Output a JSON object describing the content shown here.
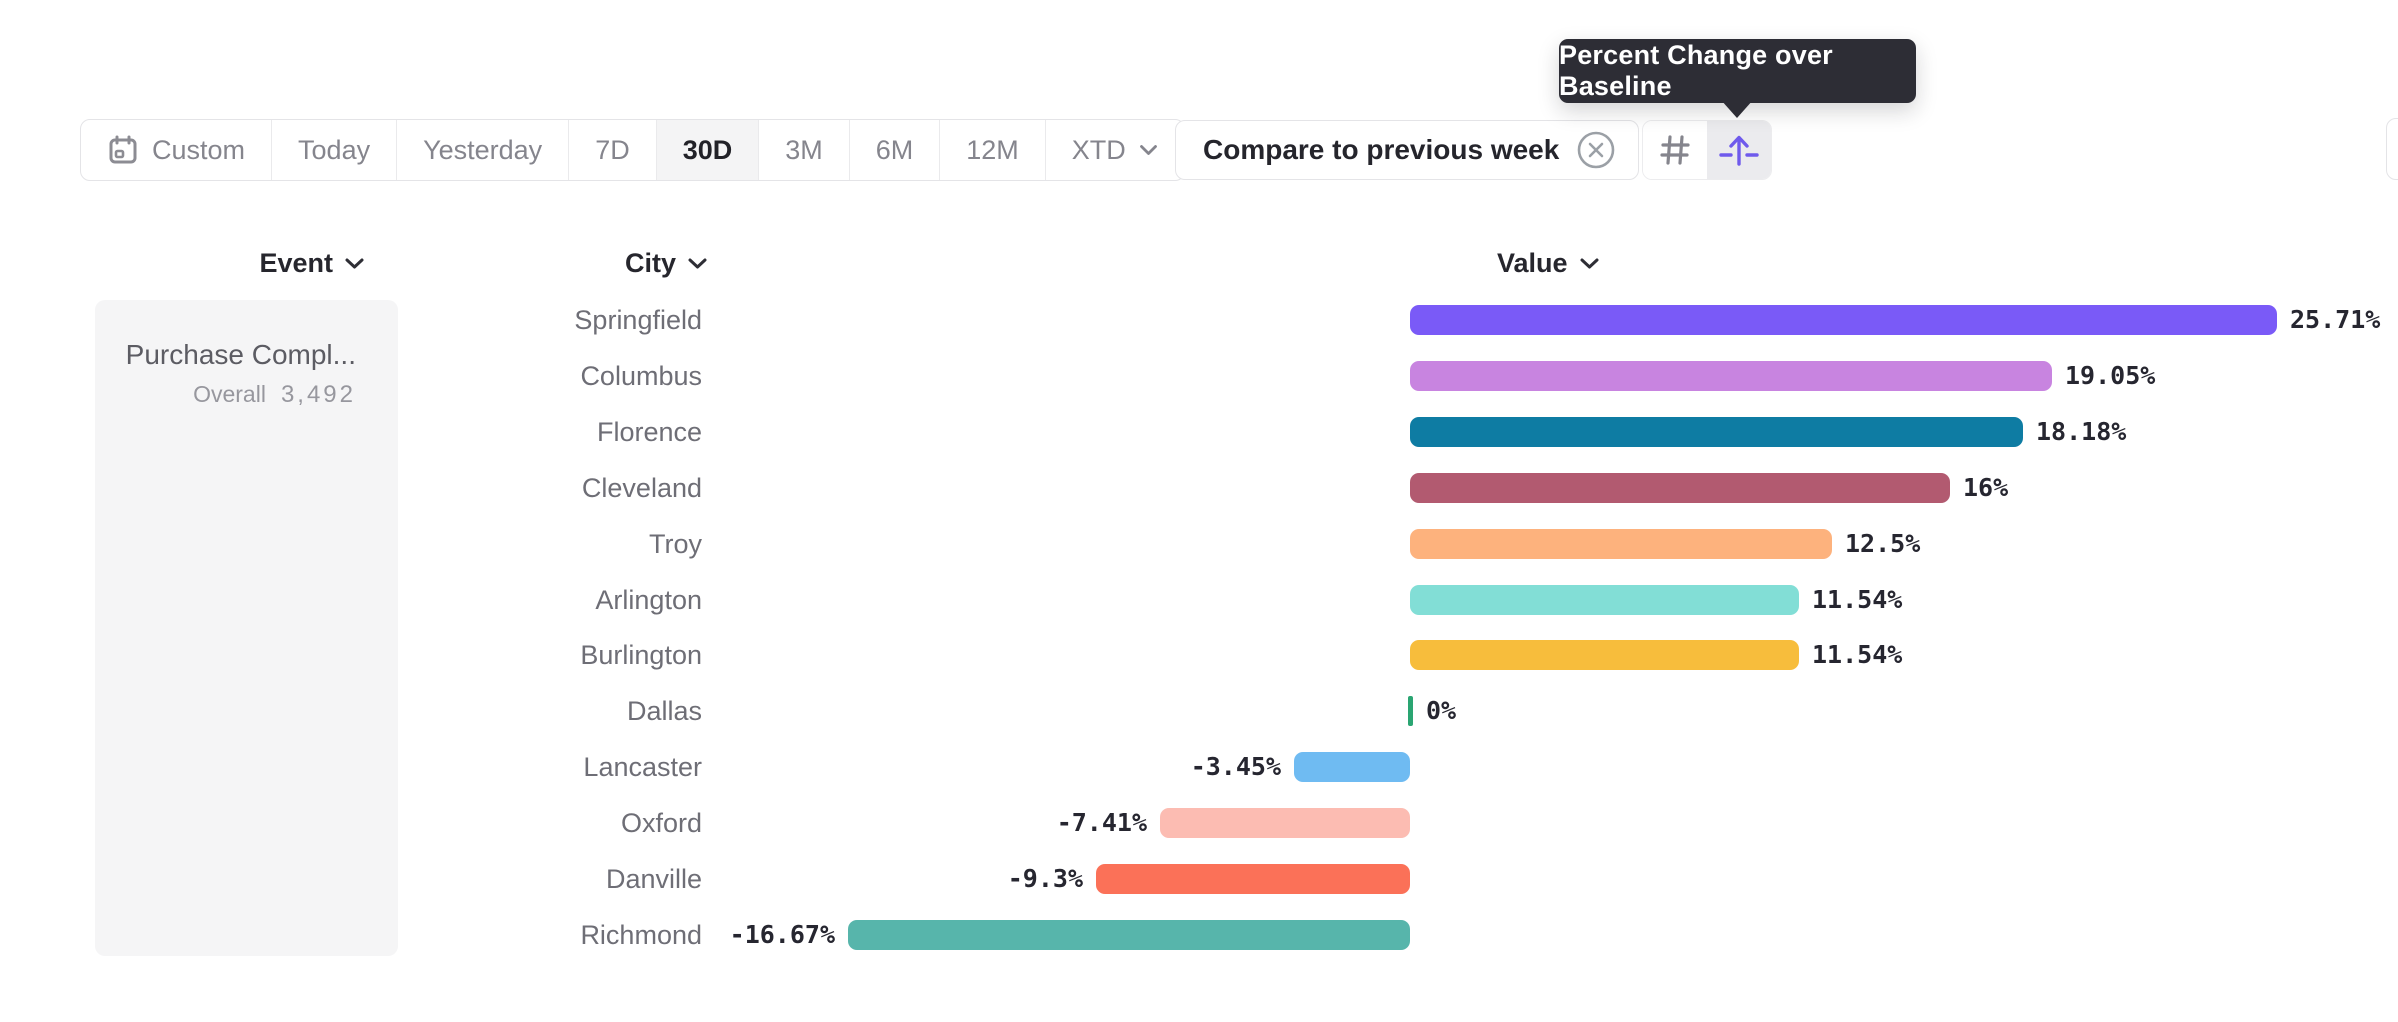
{
  "tooltip": {
    "text": "Percent Change over Baseline",
    "bg_color": "#2d2d35"
  },
  "date_range_bar": {
    "options": [
      {
        "label": "Custom",
        "icon": "calendar-icon",
        "selected": false,
        "has_dropdown": false
      },
      {
        "label": "Today",
        "icon": "",
        "selected": false,
        "has_dropdown": false
      },
      {
        "label": "Yesterday",
        "icon": "",
        "selected": false,
        "has_dropdown": false
      },
      {
        "label": "7D",
        "icon": "",
        "selected": false,
        "has_dropdown": false
      },
      {
        "label": "30D",
        "icon": "",
        "selected": true,
        "has_dropdown": false
      },
      {
        "label": "3M",
        "icon": "",
        "selected": false,
        "has_dropdown": false
      },
      {
        "label": "6M",
        "icon": "",
        "selected": false,
        "has_dropdown": false
      },
      {
        "label": "12M",
        "icon": "",
        "selected": false,
        "has_dropdown": false
      },
      {
        "label": "XTD",
        "icon": "",
        "selected": false,
        "has_dropdown": true
      }
    ]
  },
  "compare_chip": {
    "label": "Compare to previous week"
  },
  "view_toggle": {
    "buttons": [
      {
        "name": "grid-view",
        "icon": "hash-icon",
        "selected": false
      },
      {
        "name": "baseline-lift-view",
        "icon": "arrow-up-baseline-icon",
        "selected": true
      }
    ],
    "accent_color": "#6f5aec"
  },
  "columns": {
    "event": "Event",
    "city": "City",
    "value": "Value"
  },
  "event_card": {
    "title": "Purchase Compl...",
    "overall_label": "Overall",
    "overall_value": "3,492"
  },
  "rows": [
    {
      "city": "Springfield",
      "value": 25.71,
      "label": "25.71%",
      "color": "#7a5af7"
    },
    {
      "city": "Columbus",
      "value": 19.05,
      "label": "19.05%",
      "color": "#c884e0"
    },
    {
      "city": "Florence",
      "value": 18.18,
      "label": "18.18%",
      "color": "#0e7ca3"
    },
    {
      "city": "Cleveland",
      "value": 16,
      "label": "16%",
      "color": "#b25a70"
    },
    {
      "city": "Troy",
      "value": 12.5,
      "label": "12.5%",
      "color": "#fdb27d"
    },
    {
      "city": "Arlington",
      "value": 11.54,
      "label": "11.54%",
      "color": "#82ded6"
    },
    {
      "city": "Burlington",
      "value": 11.54,
      "label": "11.54%",
      "color": "#f7bd3c"
    },
    {
      "city": "Dallas",
      "value": 0,
      "label": "0%",
      "color": "#2aa572"
    },
    {
      "city": "Lancaster",
      "value": -3.45,
      "label": "-3.45%",
      "color": "#6fbbf2"
    },
    {
      "city": "Oxford",
      "value": -7.41,
      "label": "-7.41%",
      "color": "#fcbcb2"
    },
    {
      "city": "Danville",
      "value": -9.3,
      "label": "-9.3%",
      "color": "#fb7158"
    },
    {
      "city": "Richmond",
      "value": -16.67,
      "label": "-16.67%",
      "color": "#57b5ab"
    }
  ],
  "chart_data": {
    "type": "bar",
    "orientation": "horizontal",
    "title": "Percent Change over Baseline",
    "categories": [
      "Springfield",
      "Columbus",
      "Florence",
      "Cleveland",
      "Troy",
      "Arlington",
      "Burlington",
      "Dallas",
      "Lancaster",
      "Oxford",
      "Danville",
      "Richmond"
    ],
    "values": [
      25.71,
      19.05,
      18.18,
      16,
      12.5,
      11.54,
      11.54,
      0,
      -3.45,
      -7.41,
      -9.3,
      -16.67
    ],
    "value_labels": [
      "25.71%",
      "19.05%",
      "18.18%",
      "16%",
      "12.5%",
      "11.54%",
      "11.54%",
      "0%",
      "-3.45%",
      "-7.41%",
      "-9.3%",
      "-16.67%"
    ],
    "xlabel": "Value",
    "ylabel": "City",
    "xlim": [
      -17,
      26
    ],
    "grid": false,
    "legend": false,
    "event": "Purchase Compl...",
    "event_overall_count": "3,492",
    "date_range": "30D",
    "comparison": "Compare to previous week"
  }
}
